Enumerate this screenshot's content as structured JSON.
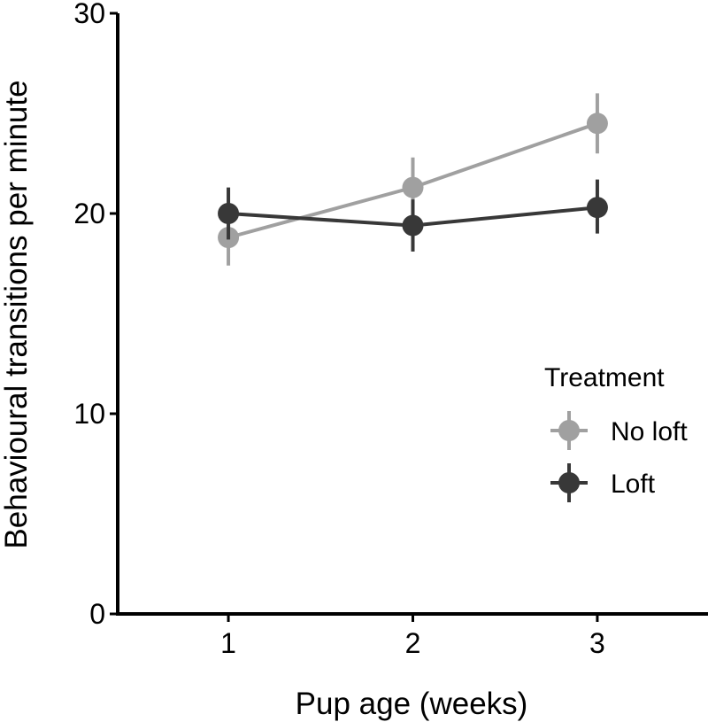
{
  "chart_data": {
    "type": "line",
    "title": "",
    "xlabel": "Pup age (weeks)",
    "ylabel": "Behavioural transitions per minute",
    "x": [
      1,
      2,
      3
    ],
    "x_tick_labels": [
      "1",
      "2",
      "3"
    ],
    "xlim": [
      0.4,
      3.6
    ],
    "ylim": [
      0,
      30
    ],
    "y_ticks": [
      0,
      10,
      20,
      30
    ],
    "y_tick_labels": [
      "0",
      "10",
      "20",
      "30"
    ],
    "grid": false,
    "legend": {
      "title": "Treatment",
      "position": "right"
    },
    "series": [
      {
        "name": "No loft",
        "color": "#a0a0a0",
        "values": [
          18.8,
          21.3,
          24.5
        ],
        "error_low": [
          17.4,
          19.8,
          23.0
        ],
        "error_high": [
          20.3,
          22.8,
          26.0
        ]
      },
      {
        "name": "Loft",
        "color": "#383838",
        "values": [
          20.0,
          19.4,
          20.3
        ],
        "error_low": [
          18.7,
          18.1,
          19.0
        ],
        "error_high": [
          21.3,
          20.7,
          21.7
        ]
      }
    ]
  }
}
